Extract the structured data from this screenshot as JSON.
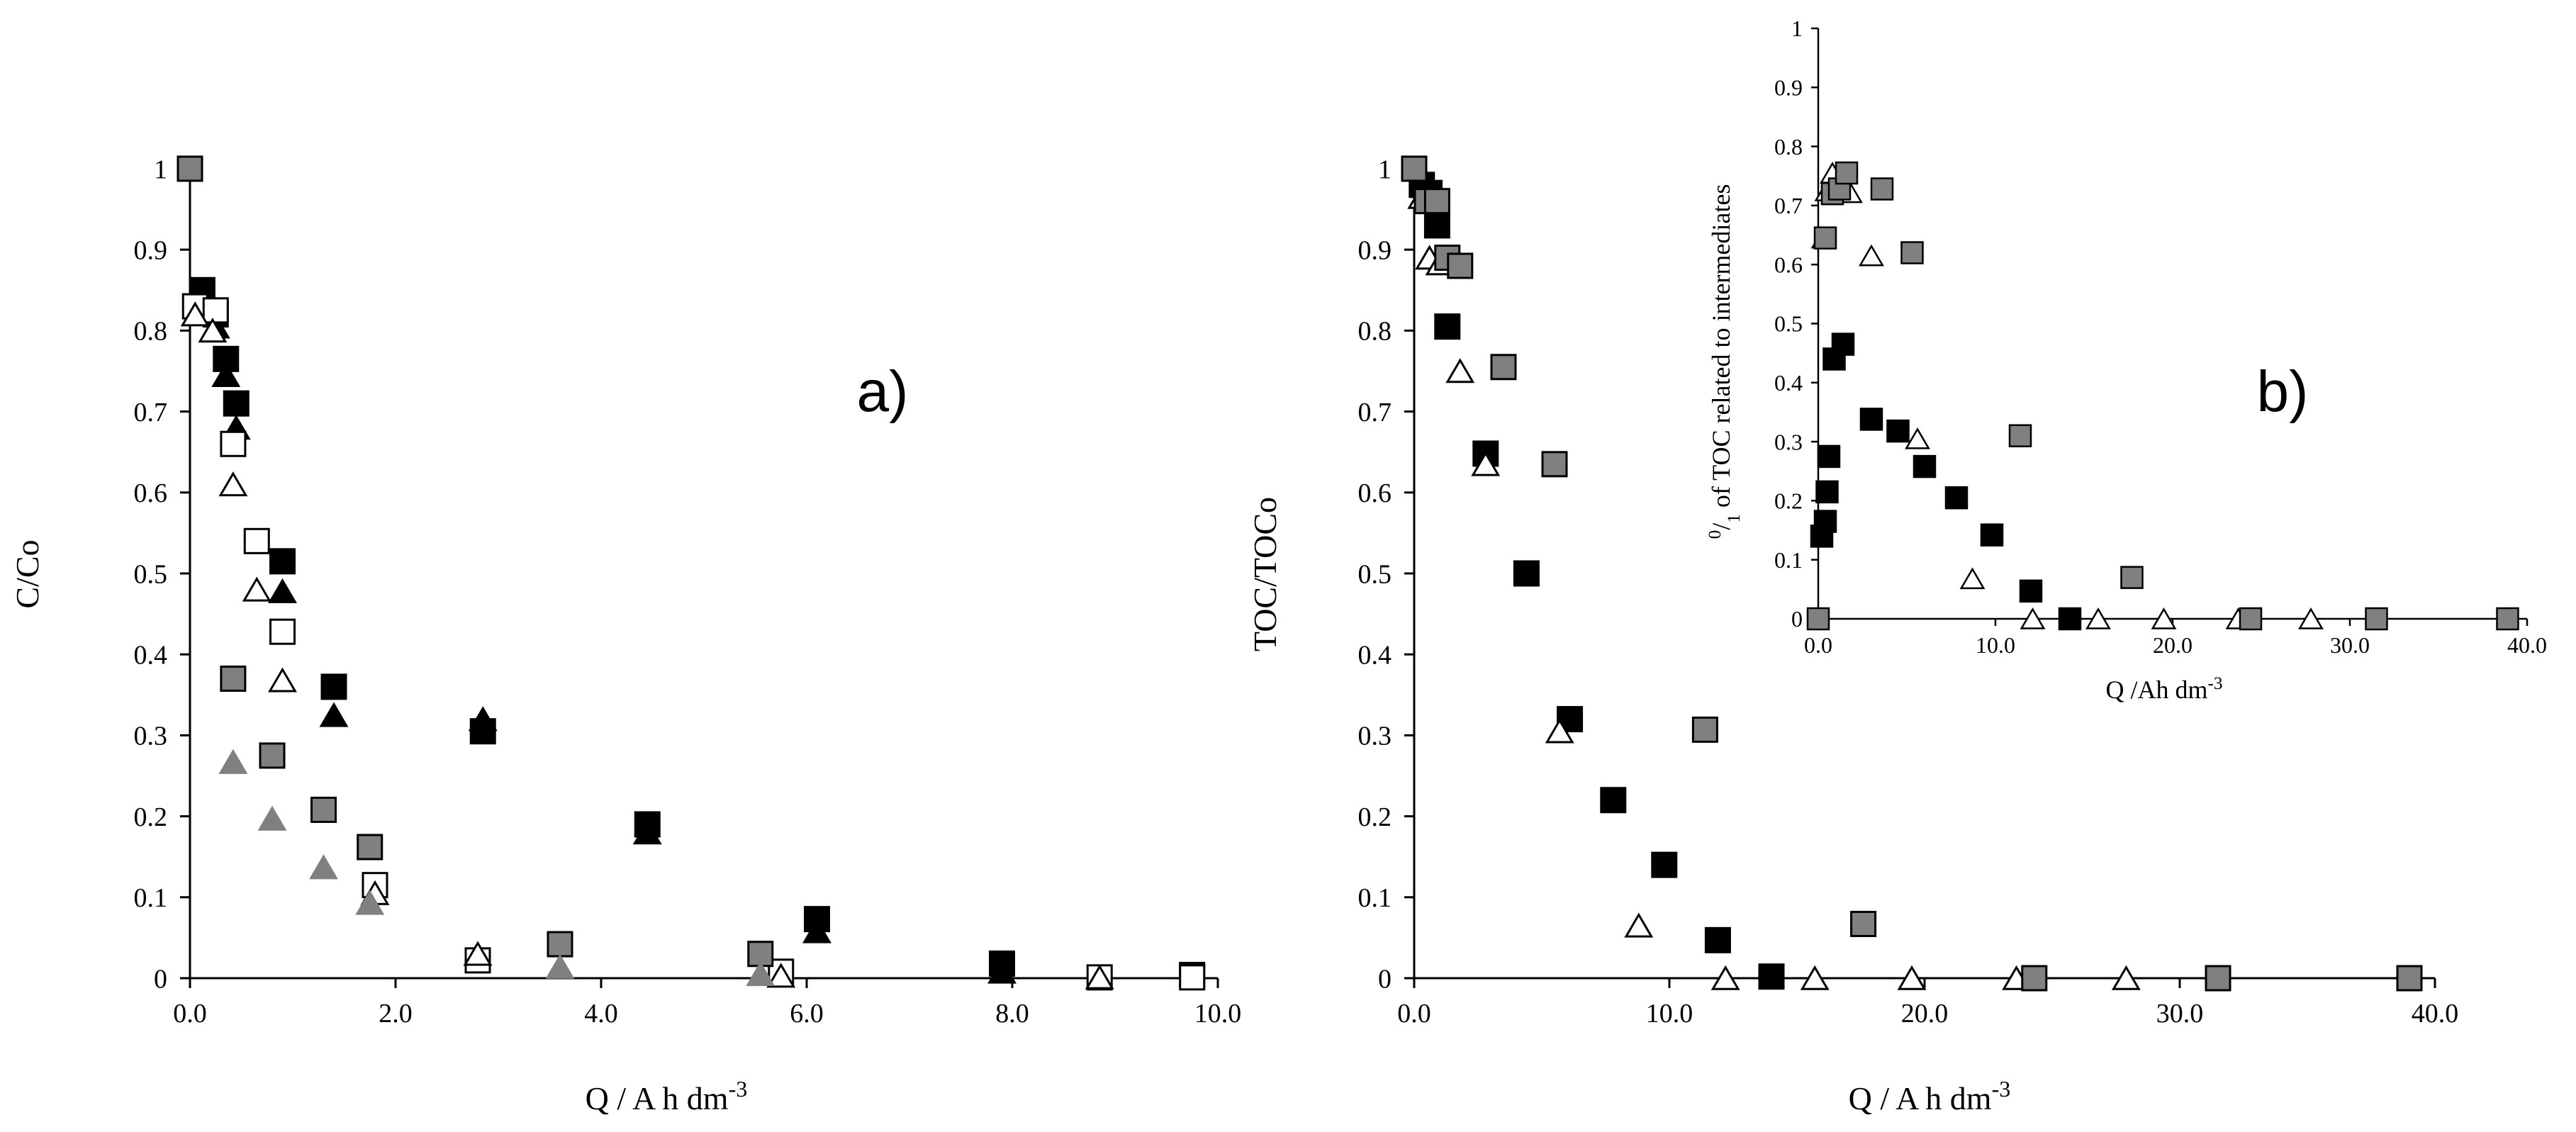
{
  "colors": {
    "black": "#000000",
    "gray": "#808080",
    "white": "#ffffff"
  },
  "chart_data": [
    {
      "type": "scatter",
      "panel_label": "a)",
      "xlabel": "Q / A h dm",
      "xlabel_sup": "-3",
      "ylabel": "C/Co",
      "xlim": [
        0,
        10
      ],
      "ylim": [
        0,
        1
      ],
      "x_tick_labels": [
        "0.0",
        "2.0",
        "4.0",
        "6.0",
        "8.0",
        "10.0"
      ],
      "y_tick_labels": [
        "0",
        "0.1",
        "0.2",
        "0.3",
        "0.4",
        "0.5",
        "0.6",
        "0.7",
        "0.8",
        "0.9",
        "1"
      ],
      "series": [
        {
          "marker": "square",
          "fill": "#000000",
          "points": [
            [
              0.12,
              0.85
            ],
            [
              0.25,
              0.82
            ],
            [
              0.35,
              0.765
            ],
            [
              0.45,
              0.71
            ],
            [
              0.9,
              0.515
            ],
            [
              1.4,
              0.36
            ],
            [
              2.85,
              0.305
            ],
            [
              4.45,
              0.19
            ],
            [
              6.1,
              0.073
            ],
            [
              7.9,
              0.018
            ],
            [
              9.75,
              0.004
            ]
          ]
        },
        {
          "marker": "triangle",
          "fill": "#000000",
          "points": [
            [
              0.12,
              0.84
            ],
            [
              0.25,
              0.805
            ],
            [
              0.35,
              0.745
            ],
            [
              0.45,
              0.68
            ],
            [
              0.9,
              0.478
            ],
            [
              1.4,
              0.325
            ],
            [
              2.85,
              0.32
            ],
            [
              4.45,
              0.18
            ],
            [
              6.1,
              0.058
            ],
            [
              7.9,
              0.008
            ]
          ]
        },
        {
          "marker": "square",
          "fill": "#ffffff",
          "points": [
            [
              0.05,
              0.83
            ],
            [
              0.25,
              0.825
            ],
            [
              0.42,
              0.66
            ],
            [
              0.65,
              0.54
            ],
            [
              0.9,
              0.428
            ],
            [
              1.8,
              0.115
            ],
            [
              2.8,
              0.022
            ],
            [
              5.75,
              0.008
            ],
            [
              8.85,
              0.001
            ],
            [
              9.75,
              0.001
            ]
          ]
        },
        {
          "marker": "triangle",
          "fill": "#ffffff",
          "points": [
            [
              0.05,
              0.82
            ],
            [
              0.22,
              0.8
            ],
            [
              0.42,
              0.61
            ],
            [
              0.65,
              0.48
            ],
            [
              0.9,
              0.368
            ],
            [
              1.8,
              0.105
            ],
            [
              2.8,
              0.03
            ],
            [
              5.75,
              0.003
            ],
            [
              8.85,
              0.001
            ]
          ]
        },
        {
          "marker": "square",
          "fill": "#808080",
          "points": [
            [
              0.0,
              1.0
            ],
            [
              0.42,
              0.37
            ],
            [
              0.8,
              0.275
            ],
            [
              1.3,
              0.208
            ],
            [
              1.75,
              0.162
            ],
            [
              3.6,
              0.042
            ],
            [
              5.55,
              0.03
            ]
          ]
        },
        {
          "marker": "triangle",
          "fill": "#808080",
          "points": [
            [
              0.42,
              0.267
            ],
            [
              0.8,
              0.197
            ],
            [
              1.3,
              0.137
            ],
            [
              1.75,
              0.093
            ],
            [
              3.6,
              0.014
            ],
            [
              5.55,
              0.005
            ]
          ]
        }
      ]
    },
    {
      "type": "scatter",
      "panel_label": "b)",
      "xlabel": "Q / A h dm",
      "xlabel_sup": "-3",
      "ylabel": "TOC/TOCo",
      "xlim": [
        0,
        40
      ],
      "ylim": [
        0,
        1
      ],
      "x_tick_labels": [
        "0.0",
        "10.0",
        "20.0",
        "30.0",
        "40.0"
      ],
      "y_tick_labels": [
        "0",
        "0.1",
        "0.2",
        "0.3",
        "0.4",
        "0.5",
        "0.6",
        "0.7",
        "0.8",
        "0.9",
        "1"
      ],
      "series": [
        {
          "marker": "square",
          "fill": "#000000",
          "points": [
            [
              0.3,
              0.98
            ],
            [
              0.6,
              0.97
            ],
            [
              0.9,
              0.93
            ],
            [
              1.3,
              0.805
            ],
            [
              2.8,
              0.648
            ],
            [
              4.4,
              0.5
            ],
            [
              6.1,
              0.32
            ],
            [
              7.8,
              0.22
            ],
            [
              9.8,
              0.14
            ],
            [
              11.9,
              0.047
            ],
            [
              14.0,
              0.002
            ]
          ]
        },
        {
          "marker": "triangle",
          "fill": "#ffffff",
          "points": [
            [
              0.3,
              0.965
            ],
            [
              0.6,
              0.89
            ],
            [
              1.0,
              0.883
            ],
            [
              1.8,
              0.75
            ],
            [
              2.8,
              0.635
            ],
            [
              5.7,
              0.305
            ],
            [
              8.8,
              0.065
            ],
            [
              12.2,
              0.0
            ],
            [
              15.7,
              0.0
            ],
            [
              19.5,
              0.0
            ],
            [
              23.6,
              0.0
            ],
            [
              27.9,
              0.0
            ]
          ]
        },
        {
          "marker": "square",
          "fill": "#808080",
          "points": [
            [
              0.0,
              1.0
            ],
            [
              0.5,
              0.96
            ],
            [
              0.9,
              0.96
            ],
            [
              1.3,
              0.89
            ],
            [
              1.8,
              0.88
            ],
            [
              3.5,
              0.755
            ],
            [
              5.5,
              0.635
            ],
            [
              11.4,
              0.307
            ],
            [
              17.6,
              0.067
            ],
            [
              24.3,
              0.0
            ],
            [
              31.5,
              0.0
            ],
            [
              39.0,
              0.0
            ]
          ]
        }
      ],
      "inset": {
        "xlabel": "Q /Ah dm",
        "xlabel_sup": "-3",
        "ylabel_sup": "0",
        "ylabel_sub": "1",
        "ylabel": " of TOC related to intermediates",
        "xlim": [
          0,
          40
        ],
        "ylim": [
          0,
          1
        ],
        "x_tick_labels": [
          "0.0",
          "10.0",
          "20.0",
          "30.0",
          "40.0"
        ],
        "y_tick_labels": [
          "0",
          "0.1",
          "0.2",
          "0.3",
          "0.4",
          "0.5",
          "0.6",
          "0.7",
          "0.8",
          "0.9",
          "1"
        ],
        "series": [
          {
            "marker": "square",
            "fill": "#000000",
            "points": [
              [
                0.2,
                0.14
              ],
              [
                0.4,
                0.165
              ],
              [
                0.5,
                0.215
              ],
              [
                0.6,
                0.275
              ],
              [
                0.9,
                0.44
              ],
              [
                1.4,
                0.465
              ],
              [
                3.0,
                0.338
              ],
              [
                4.5,
                0.318
              ],
              [
                6.0,
                0.258
              ],
              [
                7.8,
                0.205
              ],
              [
                9.8,
                0.142
              ],
              [
                12.0,
                0.047
              ],
              [
                14.2,
                0.0
              ]
            ]
          },
          {
            "marker": "triangle",
            "fill": "#ffffff",
            "points": [
              [
                0.3,
                0.645
              ],
              [
                0.5,
                0.725
              ],
              [
                0.8,
                0.755
              ],
              [
                1.2,
                0.722
              ],
              [
                1.8,
                0.722
              ],
              [
                3.0,
                0.615
              ],
              [
                5.6,
                0.305
              ],
              [
                8.7,
                0.068
              ],
              [
                12.1,
                0.0
              ],
              [
                15.8,
                0.0
              ],
              [
                19.5,
                0.0
              ],
              [
                23.7,
                0.0
              ],
              [
                27.8,
                0.0
              ]
            ]
          },
          {
            "marker": "square",
            "fill": "#808080",
            "points": [
              [
                0.0,
                0.0
              ],
              [
                0.4,
                0.645
              ],
              [
                0.8,
                0.72
              ],
              [
                1.2,
                0.728
              ],
              [
                1.6,
                0.755
              ],
              [
                3.6,
                0.728
              ],
              [
                5.3,
                0.62
              ],
              [
                11.4,
                0.31
              ],
              [
                17.7,
                0.07
              ],
              [
                24.4,
                0.0
              ],
              [
                31.5,
                0.0
              ],
              [
                38.9,
                0.0
              ]
            ]
          }
        ]
      }
    }
  ]
}
